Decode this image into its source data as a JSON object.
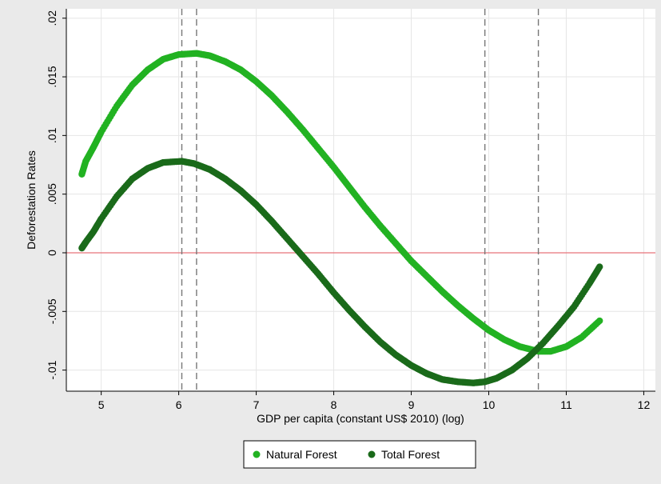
{
  "chart_data": {
    "type": "scatter",
    "xlabel": "GDP per capita (constant US$ 2010) (log)",
    "ylabel": "Deforestation Rates",
    "xlim": [
      4.55,
      12.15
    ],
    "ylim": [
      -0.0118,
      0.0208
    ],
    "x_ticks": [
      5,
      6,
      7,
      8,
      9,
      10,
      11,
      12
    ],
    "x_tick_labels": [
      "5",
      "6",
      "7",
      "8",
      "9",
      "10",
      "11",
      "12"
    ],
    "y_ticks": [
      -0.01,
      -0.005,
      0,
      0.005,
      0.01,
      0.015,
      0.02
    ],
    "y_tick_labels": [
      "-.01",
      "-.005",
      "0",
      ".005",
      ".01",
      ".015",
      ".02"
    ],
    "grid": true,
    "legend_position": "bottom",
    "reference_lines": {
      "horizontal": [
        {
          "y": 0,
          "color": "#e8737a",
          "style": "solid"
        }
      ],
      "vertical": [
        {
          "x": 6.04,
          "style": "dashed"
        },
        {
          "x": 6.23,
          "style": "dashed"
        },
        {
          "x": 9.95,
          "style": "dashed"
        },
        {
          "x": 10.64,
          "style": "dashed"
        }
      ]
    },
    "series": [
      {
        "name": "Natural Forest",
        "color": "#22b222",
        "x": [
          4.75,
          4.8,
          4.9,
          5.0,
          5.2,
          5.4,
          5.6,
          5.8,
          6.0,
          6.23,
          6.4,
          6.6,
          6.8,
          7.0,
          7.2,
          7.4,
          7.6,
          7.8,
          8.0,
          8.2,
          8.4,
          8.6,
          8.8,
          9.0,
          9.2,
          9.4,
          9.6,
          9.8,
          10.0,
          10.2,
          10.4,
          10.64,
          10.8,
          11.0,
          11.2,
          11.43
        ],
        "y": [
          0.0067,
          0.0078,
          0.009,
          0.0103,
          0.0125,
          0.0143,
          0.0156,
          0.0165,
          0.0169,
          0.017,
          0.0168,
          0.0163,
          0.0156,
          0.0146,
          0.0134,
          0.012,
          0.0105,
          0.0089,
          0.0073,
          0.0056,
          0.0039,
          0.0023,
          0.0008,
          -0.0007,
          -0.002,
          -0.0033,
          -0.0045,
          -0.0056,
          -0.0066,
          -0.0074,
          -0.008,
          -0.0084,
          -0.0084,
          -0.008,
          -0.0072,
          -0.0058
        ]
      },
      {
        "name": "Total Forest",
        "color": "#1a6a1a",
        "x": [
          4.75,
          4.8,
          4.9,
          5.0,
          5.2,
          5.4,
          5.6,
          5.8,
          6.04,
          6.2,
          6.4,
          6.6,
          6.8,
          7.0,
          7.2,
          7.4,
          7.6,
          7.8,
          8.0,
          8.2,
          8.4,
          8.6,
          8.8,
          9.0,
          9.2,
          9.4,
          9.6,
          9.8,
          9.95,
          10.1,
          10.3,
          10.5,
          10.7,
          10.9,
          11.1,
          11.3,
          11.43
        ],
        "y": [
          0.0004,
          0.0009,
          0.0018,
          0.0029,
          0.0048,
          0.0063,
          0.0072,
          0.0077,
          0.0078,
          0.0076,
          0.0071,
          0.0063,
          0.0053,
          0.0041,
          0.0027,
          0.0012,
          -0.0003,
          -0.0018,
          -0.0034,
          -0.0049,
          -0.0063,
          -0.0076,
          -0.0087,
          -0.0096,
          -0.0103,
          -0.0108,
          -0.011,
          -0.0111,
          -0.011,
          -0.0107,
          -0.01,
          -0.009,
          -0.0077,
          -0.0062,
          -0.0046,
          -0.0026,
          -0.0012
        ]
      }
    ]
  }
}
